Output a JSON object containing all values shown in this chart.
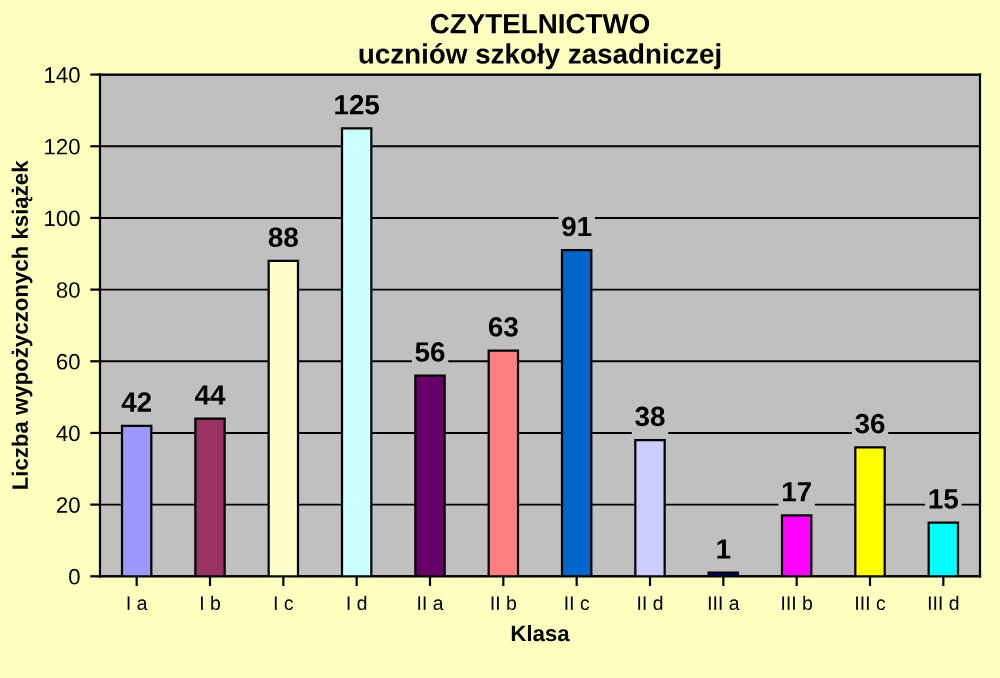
{
  "chart_data": {
    "type": "bar",
    "title": "CZYTELNICTWO\nuczniów szkoły zasadniczej",
    "xlabel": "Klasa",
    "ylabel": "Liczba wypożyczonych książek",
    "categories": [
      "I a",
      "I b",
      "I c",
      "I d",
      "II a",
      "II b",
      "II c",
      "II d",
      "III a",
      "III b",
      "III c",
      "III d"
    ],
    "values": [
      42,
      44,
      88,
      125,
      56,
      63,
      91,
      38,
      1,
      17,
      36,
      15
    ],
    "colors": [
      "#9999ff",
      "#993366",
      "#ffffcc",
      "#ccffff",
      "#660066",
      "#ff8080",
      "#0066cc",
      "#ccccff",
      "#000080",
      "#ff00ff",
      "#ffff00",
      "#00ffff"
    ],
    "ylim": [
      0,
      140
    ],
    "yticks": [
      0,
      20,
      40,
      60,
      80,
      100,
      120,
      140
    ],
    "grid": "y",
    "data_labels": true,
    "legend": false
  }
}
